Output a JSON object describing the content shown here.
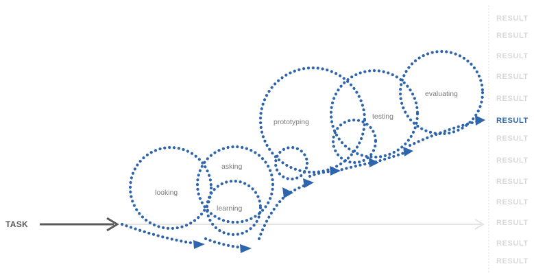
{
  "task": {
    "label": "TASK"
  },
  "circles": [
    {
      "id": "looking",
      "label": "looking"
    },
    {
      "id": "asking",
      "label": "asking"
    },
    {
      "id": "learning",
      "label": "learning"
    },
    {
      "id": "prototyping",
      "label": "prototyping"
    },
    {
      "id": "testing",
      "label": "testing"
    },
    {
      "id": "evaluating",
      "label": "evaluating"
    }
  ],
  "results": {
    "label": "RESULT",
    "items": [
      {
        "label": "RESULT",
        "highlighted": false
      },
      {
        "label": "RESULT",
        "highlighted": false
      },
      {
        "label": "RESULT",
        "highlighted": false
      },
      {
        "label": "RESULT",
        "highlighted": false
      },
      {
        "label": "RESULT",
        "highlighted": false
      },
      {
        "label": "RESULT",
        "highlighted": true
      },
      {
        "label": "RESULT",
        "highlighted": false
      },
      {
        "label": "RESULT",
        "highlighted": false
      },
      {
        "label": "RESULT",
        "highlighted": false
      },
      {
        "label": "RESULT",
        "highlighted": false
      },
      {
        "label": "RESULT",
        "highlighted": false
      },
      {
        "label": "RESULT",
        "highlighted": false
      },
      {
        "label": "RESULT",
        "highlighted": false
      }
    ]
  },
  "colors": {
    "accent": "#2f65ad",
    "task_arrow": "#595959",
    "baseline": "#e3e3e3",
    "result_muted": "#d9d9d9",
    "label_gray": "#7a7a7a"
  }
}
